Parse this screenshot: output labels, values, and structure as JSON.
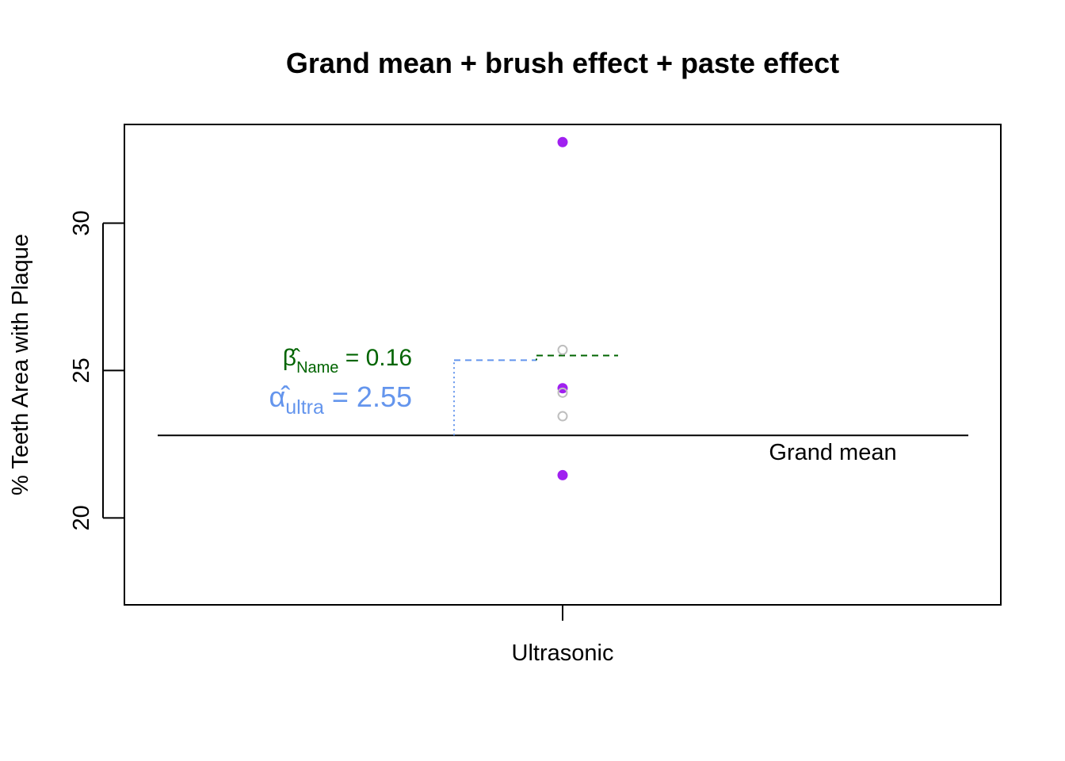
{
  "chart_data": {
    "type": "scatter",
    "title": "Grand mean + brush effect + paste effect",
    "xlabel": "",
    "ylabel": "% Teeth Area with Plaque",
    "categories": [
      "Ultrasonic"
    ],
    "ylim": [
      17.05,
      33.35
    ],
    "yticks": [
      20,
      25,
      30
    ],
    "grid": false,
    "grand_mean": 22.8,
    "grand_mean_label": "Grand mean",
    "brush_effect": {
      "symbol": "α̂",
      "subscript": "ultra",
      "equals": "=",
      "value_text": "2.55",
      "value": 2.55,
      "color": "#6495ED"
    },
    "paste_effect": {
      "symbol": "β̂",
      "subscript": "Name",
      "equals": "=",
      "value_text": "0.16",
      "value": 0.16,
      "color": "#006400"
    },
    "series": [
      {
        "values": [
          32.75,
          24.4,
          21.45
        ],
        "color": "#A020F0",
        "marker": "filled-circle"
      },
      {
        "values": [
          25.7,
          24.25,
          23.45
        ],
        "color": "#BEBEBE",
        "marker": "open-circle"
      }
    ]
  }
}
